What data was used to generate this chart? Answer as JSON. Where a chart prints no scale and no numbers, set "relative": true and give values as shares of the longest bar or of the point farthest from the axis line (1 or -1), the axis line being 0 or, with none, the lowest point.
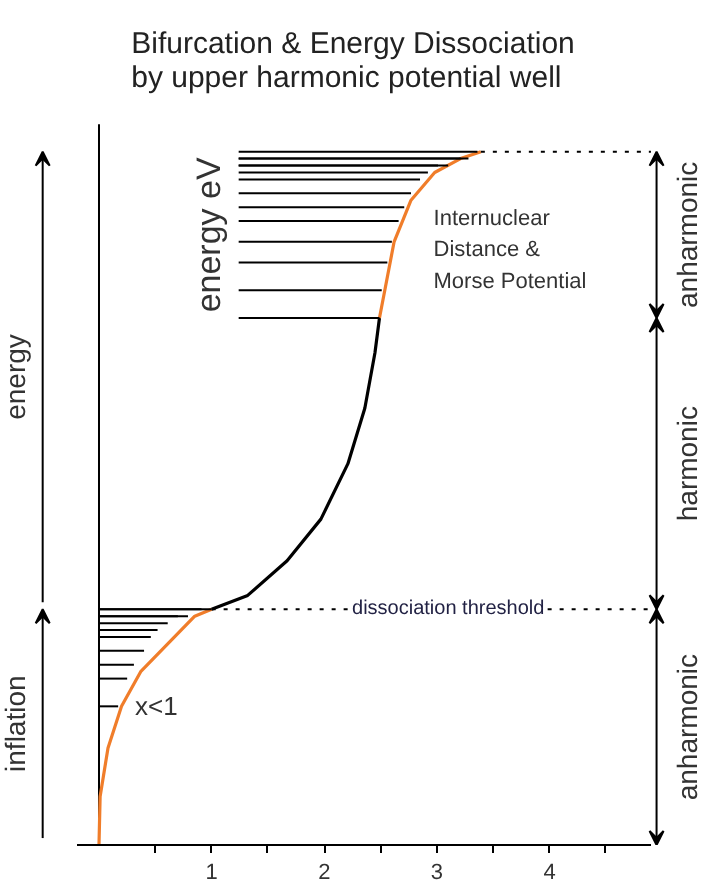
{
  "chart_data": {
    "type": "line",
    "relative": true,
    "title": "Bifurcation & Energy Dissociation by upper harmonic potential well",
    "ylabel": "energy eV",
    "xlim": [
      -0.2,
      4.9
    ],
    "xticks": [
      {
        "value": 0.5,
        "label": null
      },
      1,
      {
        "value": 1.5,
        "label": null
      },
      2,
      {
        "value": 2.5,
        "label": null
      },
      3,
      {
        "value": 3.5,
        "label": null
      },
      4,
      {
        "value": 4.5,
        "label": null
      }
    ],
    "grid": false,
    "series": [
      {
        "color": "#f07d2a",
        "x": [
          0,
          0.01,
          0.08,
          0.2,
          0.37,
          0.61,
          0.85,
          1.0
        ],
        "values": [
          0,
          0.07,
          0.14,
          0.2,
          0.25,
          0.29,
          0.33,
          0.34
        ]
      },
      {
        "color": "#000000",
        "x": [
          1.0,
          1.32,
          1.67,
          1.97,
          2.21,
          2.36,
          2.45,
          2.49
        ],
        "values": [
          0.34,
          0.36,
          0.41,
          0.47,
          0.55,
          0.63,
          0.71,
          0.76
        ]
      },
      {
        "color": "#f07d2a",
        "x": [
          2.49,
          2.62,
          2.77,
          2.98,
          3.21,
          3.39
        ],
        "values": [
          0.76,
          0.87,
          0.93,
          0.97,
          0.99,
          1.0
        ]
      },
      {
        "color": "#000000",
        "x": [
          1.24,
          3.36
        ],
        "values": [
          1.0,
          1.0
        ]
      },
      {
        "color": "#000000",
        "x": [
          1.24,
          3.28
        ],
        "values": [
          0.99,
          0.99
        ]
      },
      {
        "color": "#000000",
        "x": [
          1.24,
          3.21
        ],
        "values": [
          0.99,
          0.99
        ]
      },
      {
        "color": "#000000",
        "x": [
          1.24,
          3.1
        ],
        "values": [
          0.98,
          0.98
        ]
      },
      {
        "color": "#000000",
        "x": [
          1.24,
          3.01
        ],
        "values": [
          0.98,
          0.98
        ]
      },
      {
        "color": "#000000",
        "x": [
          1.24,
          2.92
        ],
        "values": [
          0.97,
          0.97
        ]
      },
      {
        "color": "#000000",
        "x": [
          1.24,
          2.85
        ],
        "values": [
          0.96,
          0.96
        ]
      },
      {
        "color": "#000000",
        "x": [
          1.24,
          2.77
        ],
        "values": [
          0.94,
          0.94
        ]
      },
      {
        "color": "#000000",
        "x": [
          1.24,
          2.71
        ],
        "values": [
          0.92,
          0.92
        ]
      },
      {
        "color": "#000000",
        "x": [
          1.24,
          2.66
        ],
        "values": [
          0.9,
          0.9
        ]
      },
      {
        "color": "#000000",
        "x": [
          1.24,
          2.6
        ],
        "values": [
          0.87,
          0.87
        ]
      },
      {
        "color": "#000000",
        "x": [
          1.24,
          2.56
        ],
        "values": [
          0.84,
          0.84
        ]
      },
      {
        "color": "#000000",
        "x": [
          1.24,
          2.51
        ],
        "values": [
          0.8,
          0.8
        ]
      },
      {
        "color": "#000000",
        "x": [
          1.24,
          2.49
        ],
        "values": [
          0.76,
          0.76
        ]
      },
      {
        "color": "#000000",
        "x": [
          0,
          1.0
        ],
        "values": [
          0.34,
          0.34
        ]
      },
      {
        "color": "#000000",
        "x": [
          0,
          0.91
        ],
        "values": [
          0.34,
          0.34
        ]
      },
      {
        "color": "#000000",
        "x": [
          0,
          0.79
        ],
        "values": [
          0.33,
          0.33
        ]
      },
      {
        "color": "#000000",
        "x": [
          0,
          0.7
        ],
        "values": [
          0.33,
          0.33
        ]
      },
      {
        "color": "#000000",
        "x": [
          0,
          0.61
        ],
        "values": [
          0.32,
          0.32
        ]
      },
      {
        "color": "#000000",
        "x": [
          0,
          0.52
        ],
        "values": [
          0.31,
          0.31
        ]
      },
      {
        "color": "#000000",
        "x": [
          0,
          0.46
        ],
        "values": [
          0.3,
          0.3
        ]
      },
      {
        "color": "#000000",
        "x": [
          0,
          0.4
        ],
        "values": [
          0.28,
          0.28
        ]
      },
      {
        "color": "#000000",
        "x": [
          0,
          0.31
        ],
        "values": [
          0.26,
          0.26
        ]
      },
      {
        "color": "#000000",
        "x": [
          0,
          0.25
        ],
        "values": [
          0.24,
          0.24
        ]
      },
      {
        "color": "#000000",
        "x": [
          0,
          0.17
        ],
        "values": [
          0.2,
          0.2
        ]
      },
      {
        "color": "#000000",
        "line_style": "dotted",
        "x": [
          1.0,
          4.9
        ],
        "values": [
          0.34,
          0.34
        ]
      },
      {
        "color": "#000000",
        "line_style": "dotted",
        "x": [
          3.39,
          4.9
        ],
        "values": [
          1.0,
          1.0
        ]
      }
    ],
    "annotations": [
      "Internuclear Distance & Morse Potential",
      "x<1",
      {
        "text": "dissociation threshold",
        "x": 3.1,
        "y": 0.34
      },
      "energy",
      "inflation",
      "anharmonic",
      "harmonic",
      "anharmonic"
    ]
  }
}
